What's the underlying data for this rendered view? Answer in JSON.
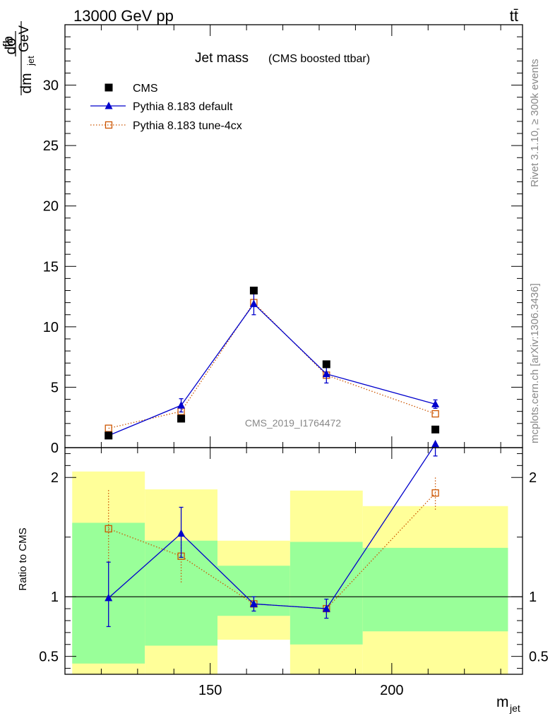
{
  "header": {
    "energy": "13000 GeV pp",
    "process": "tt̄"
  },
  "side_labels": {
    "rivet": "Rivet 3.1.10, ≥ 300k events",
    "mcplots": "mcplots.cern.ch [arXiv:1306.3436]"
  },
  "chart_data": [
    {
      "type": "scatter",
      "title": "Jet mass",
      "subtitle": "(CMS boosted ttbar)",
      "watermark": "CMS_2019_I1764472",
      "ylabel": "dσ/dm_jet fb/GeV",
      "ylabel_parts": {
        "num": "dσ",
        "den": "dm",
        "den_sub": "jet",
        "unit_num": "fb",
        "unit_den": "GeV"
      },
      "xlim": [
        110,
        236
      ],
      "ylim": [
        0,
        35
      ],
      "y_ticks": [
        0,
        5,
        10,
        15,
        20,
        25,
        30
      ],
      "legend_position": "top-left",
      "x": [
        122,
        142,
        162,
        182,
        212
      ],
      "series": [
        {
          "name": "CMS",
          "values": [
            1.0,
            2.4,
            13.0,
            6.9,
            1.5
          ],
          "color": "#000000",
          "marker": "square"
        },
        {
          "name": "Pythia 8.183 default",
          "values": [
            1.0,
            3.5,
            11.9,
            6.1,
            3.6
          ],
          "errors": [
            0.15,
            0.55,
            0.9,
            0.75,
            0.35
          ],
          "color": "#0000cc",
          "marker": "triangle"
        },
        {
          "name": "Pythia 8.183 tune-4cx",
          "values": [
            1.6,
            3.0,
            12.0,
            6.0,
            2.8
          ],
          "color": "#cc5500",
          "marker": "open-square",
          "line": "dotted"
        }
      ]
    },
    {
      "type": "scatter",
      "ylabel": "Ratio to CMS",
      "xlabel": "m_jet",
      "xlabel_parts": {
        "main": "m",
        "sub": "jet"
      },
      "xlim": [
        110,
        236
      ],
      "ylim": [
        0.35,
        2.25
      ],
      "y_ticks": [
        0.5,
        1,
        2
      ],
      "y_tick_labels": [
        "0.5",
        "1",
        "2"
      ],
      "x_ticks": [
        150,
        200
      ],
      "x_tick_labels": [
        "150",
        "200"
      ],
      "bands": [
        {
          "x0": 112,
          "x1": 132,
          "green": [
            0.44,
            1.62
          ],
          "yellow": [
            0.34,
            2.05
          ]
        },
        {
          "x0": 132,
          "x1": 152,
          "green": [
            0.59,
            1.47
          ],
          "yellow": [
            0.34,
            1.9
          ]
        },
        {
          "x0": 152,
          "x1": 172,
          "green": [
            0.84,
            1.26
          ],
          "yellow": [
            0.64,
            1.47
          ]
        },
        {
          "x0": 172,
          "x1": 192,
          "green": [
            0.6,
            1.46
          ],
          "yellow": [
            0.34,
            1.89
          ]
        },
        {
          "x0": 192,
          "x1": 232,
          "green": [
            0.71,
            1.41
          ],
          "yellow": [
            0.34,
            1.76
          ]
        }
      ],
      "x": [
        122,
        142,
        162,
        182,
        212
      ],
      "series": [
        {
          "name": "Pythia 8.183 default",
          "values": [
            0.99,
            1.53,
            0.94,
            0.9,
            2.28
          ],
          "err_lo": [
            0.24,
            0.2,
            0.06,
            0.08,
            0.1
          ],
          "err_hi": [
            0.3,
            0.22,
            0.06,
            0.08,
            0.1
          ],
          "color": "#0000cc",
          "marker": "triangle"
        },
        {
          "name": "Pythia 8.183 tune-4cx",
          "values": [
            1.57,
            1.34,
            0.94,
            0.9,
            1.87
          ],
          "err_lo": [
            0.3,
            0.22,
            0.05,
            0.07,
            0.14
          ],
          "err_hi": [
            0.33,
            0.22,
            0.05,
            0.07,
            0.14
          ],
          "color": "#cc5500",
          "marker": "open-square",
          "line": "dotted"
        }
      ]
    }
  ]
}
